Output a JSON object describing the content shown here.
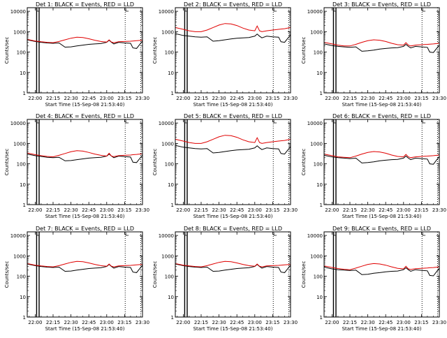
{
  "figure": {
    "ytick_labels": [
      "1",
      "10",
      "100",
      "1000",
      "10000"
    ],
    "xtick_labels": [
      "22:00",
      "22:15",
      "22:30",
      "22:45",
      "23:00",
      "23:15",
      "23:30"
    ],
    "xlabel": "Start Time (15-Sep-08 21:53:40)",
    "ylabel": "Counts/sec",
    "colors": {
      "events": "#000000",
      "lld": "#e00000",
      "axes": "#000000"
    }
  },
  "chart_data": [
    {
      "type": "line",
      "title": "Det 1: BLACK = Events, RED = LLD",
      "xlabel": "Start Time (15-Sep-08 21:53:40)",
      "ylabel": "Counts/sec",
      "y_scale": "log",
      "ylim": [
        1,
        15000
      ],
      "xlim_minutes": [
        -6.67,
        90
      ],
      "x": [
        -6.67,
        0,
        5,
        10,
        15,
        20,
        25,
        30,
        35,
        40,
        45,
        50,
        55,
        60,
        62,
        64,
        66,
        70,
        75,
        80,
        82,
        85,
        90
      ],
      "series": [
        {
          "name": "Events",
          "values": [
            400,
            330,
            300,
            280,
            270,
            280,
            175,
            180,
            200,
            220,
            240,
            250,
            260,
            300,
            380,
            300,
            250,
            300,
            280,
            270,
            160,
            150,
            350
          ]
        },
        {
          "name": "LLD",
          "values": [
            420,
            350,
            320,
            300,
            290,
            330,
            400,
            480,
            540,
            520,
            450,
            380,
            330,
            310,
            400,
            310,
            290,
            320,
            330,
            340,
            350,
            360,
            380
          ]
        }
      ]
    },
    {
      "type": "line",
      "title": "Det 2: BLACK = Events, RED = LLD",
      "xlabel": "Start Time (15-Sep-08 21:53:40)",
      "ylabel": "Counts/sec",
      "y_scale": "log",
      "ylim": [
        1,
        15000
      ],
      "xlim_minutes": [
        -6.67,
        90
      ],
      "x": [
        -6.67,
        0,
        5,
        10,
        15,
        20,
        25,
        30,
        35,
        40,
        45,
        50,
        55,
        60,
        62,
        64,
        66,
        70,
        75,
        80,
        82,
        85,
        90
      ],
      "series": [
        {
          "name": "Events",
          "values": [
            800,
            650,
            600,
            560,
            540,
            560,
            340,
            360,
            400,
            440,
            480,
            500,
            520,
            600,
            760,
            600,
            500,
            600,
            560,
            540,
            320,
            300,
            700
          ]
        },
        {
          "name": "LLD",
          "values": [
            1600,
            1300,
            1100,
            1000,
            1000,
            1200,
            1600,
            2100,
            2500,
            2400,
            2000,
            1500,
            1200,
            1100,
            1900,
            1100,
            1000,
            1100,
            1200,
            1300,
            1350,
            1400,
            1600
          ]
        }
      ]
    },
    {
      "type": "line",
      "title": "Det 3: BLACK = Events, RED = LLD",
      "xlabel": "Start Time (15-Sep-08 21:53:40)",
      "ylabel": "Counts/sec",
      "y_scale": "log",
      "ylim": [
        1,
        15000
      ],
      "xlim_minutes": [
        -6.67,
        90
      ],
      "x": [
        -6.67,
        0,
        5,
        10,
        15,
        20,
        25,
        30,
        35,
        40,
        45,
        50,
        55,
        60,
        62,
        64,
        66,
        70,
        75,
        80,
        82,
        85,
        90
      ],
      "series": [
        {
          "name": "Events",
          "values": [
            250,
            210,
            190,
            180,
            170,
            180,
            110,
            115,
            125,
            140,
            150,
            160,
            165,
            190,
            240,
            190,
            160,
            190,
            180,
            170,
            100,
            95,
            220
          ]
        },
        {
          "name": "LLD",
          "values": [
            300,
            250,
            220,
            200,
            200,
            240,
            300,
            360,
            400,
            380,
            330,
            270,
            230,
            220,
            290,
            220,
            200,
            220,
            230,
            240,
            245,
            250,
            270
          ]
        }
      ]
    },
    {
      "type": "line",
      "title": "Det 4: BLACK = Events, RED = LLD",
      "xlabel": "Start Time (15-Sep-08 21:53:40)",
      "ylabel": "Counts/sec",
      "y_scale": "log",
      "ylim": [
        1,
        15000
      ],
      "xlim_minutes": [
        -6.67,
        90
      ],
      "x": [
        -6.67,
        0,
        5,
        10,
        15,
        20,
        25,
        30,
        35,
        40,
        45,
        50,
        55,
        60,
        62,
        64,
        66,
        70,
        75,
        80,
        82,
        85,
        90
      ],
      "series": [
        {
          "name": "Events",
          "values": [
            300,
            250,
            230,
            210,
            200,
            210,
            140,
            145,
            160,
            175,
            190,
            200,
            210,
            240,
            300,
            240,
            200,
            240,
            225,
            215,
            120,
            115,
            270
          ]
        },
        {
          "name": "LLD",
          "values": [
            340,
            280,
            250,
            230,
            220,
            260,
            320,
            390,
            440,
            420,
            360,
            300,
            260,
            240,
            330,
            240,
            225,
            250,
            260,
            270,
            280,
            290,
            310
          ]
        }
      ]
    },
    {
      "type": "line",
      "title": "Det 5: BLACK = Events, RED = LLD",
      "xlabel": "Start Time (15-Sep-08 21:53:40)",
      "ylabel": "Counts/sec",
      "y_scale": "log",
      "ylim": [
        1,
        15000
      ],
      "xlim_minutes": [
        -6.67,
        90
      ],
      "x": [
        -6.67,
        0,
        5,
        10,
        15,
        20,
        25,
        30,
        35,
        40,
        45,
        50,
        55,
        60,
        62,
        64,
        66,
        70,
        75,
        80,
        82,
        85,
        90
      ],
      "series": [
        {
          "name": "Events",
          "values": [
            800,
            650,
            600,
            560,
            540,
            560,
            340,
            360,
            400,
            440,
            480,
            500,
            520,
            600,
            760,
            600,
            500,
            600,
            560,
            540,
            320,
            300,
            700
          ]
        },
        {
          "name": "LLD",
          "values": [
            1600,
            1300,
            1100,
            1000,
            1000,
            1200,
            1600,
            2100,
            2500,
            2400,
            2000,
            1500,
            1200,
            1100,
            1900,
            1100,
            1000,
            1100,
            1200,
            1300,
            1350,
            1400,
            1600
          ]
        }
      ]
    },
    {
      "type": "line",
      "title": "Det 6: BLACK = Events, RED = LLD",
      "xlabel": "Start Time (15-Sep-08 21:53:40)",
      "ylabel": "Counts/sec",
      "y_scale": "log",
      "ylim": [
        1,
        15000
      ],
      "xlim_minutes": [
        -6.67,
        90
      ],
      "x": [
        -6.67,
        0,
        5,
        10,
        15,
        20,
        25,
        30,
        35,
        40,
        45,
        50,
        55,
        60,
        62,
        64,
        66,
        70,
        75,
        80,
        82,
        85,
        90
      ],
      "series": [
        {
          "name": "Events",
          "values": [
            260,
            220,
            200,
            190,
            180,
            190,
            110,
            115,
            125,
            140,
            150,
            160,
            165,
            190,
            240,
            190,
            160,
            190,
            180,
            170,
            100,
            95,
            230
          ]
        },
        {
          "name": "LLD",
          "values": [
            300,
            250,
            220,
            210,
            200,
            240,
            300,
            360,
            400,
            380,
            330,
            270,
            230,
            220,
            290,
            220,
            200,
            220,
            230,
            240,
            245,
            250,
            270
          ]
        }
      ]
    },
    {
      "type": "line",
      "title": "Det 7: BLACK = Events, RED = LLD",
      "xlabel": "Start Time (15-Sep-08 21:53:40)",
      "ylabel": "Counts/sec",
      "y_scale": "log",
      "ylim": [
        1,
        15000
      ],
      "xlim_minutes": [
        -6.67,
        90
      ],
      "x": [
        -6.67,
        0,
        5,
        10,
        15,
        20,
        25,
        30,
        35,
        40,
        45,
        50,
        55,
        60,
        62,
        64,
        66,
        70,
        75,
        80,
        82,
        85,
        90
      ],
      "series": [
        {
          "name": "Events",
          "values": [
            400,
            330,
            300,
            280,
            270,
            280,
            175,
            180,
            200,
            220,
            240,
            250,
            260,
            300,
            380,
            300,
            250,
            300,
            280,
            270,
            160,
            150,
            350
          ]
        },
        {
          "name": "LLD",
          "values": [
            420,
            350,
            320,
            300,
            290,
            330,
            400,
            480,
            540,
            520,
            450,
            380,
            330,
            310,
            400,
            310,
            290,
            320,
            330,
            340,
            350,
            360,
            380
          ]
        }
      ]
    },
    {
      "type": "line",
      "title": "Det 8: BLACK = Events, RED = LLD",
      "xlabel": "Start Time (15-Sep-08 21:53:40)",
      "ylabel": "Counts/sec",
      "y_scale": "log",
      "ylim": [
        1,
        15000
      ],
      "xlim_minutes": [
        -6.67,
        90
      ],
      "x": [
        -6.67,
        0,
        5,
        10,
        15,
        20,
        25,
        30,
        35,
        40,
        45,
        50,
        55,
        60,
        62,
        64,
        66,
        70,
        75,
        80,
        82,
        85,
        90
      ],
      "series": [
        {
          "name": "Events",
          "values": [
            400,
            330,
            300,
            280,
            270,
            280,
            175,
            180,
            200,
            220,
            240,
            250,
            260,
            300,
            380,
            300,
            250,
            300,
            280,
            270,
            160,
            150,
            350
          ]
        },
        {
          "name": "LLD",
          "values": [
            420,
            350,
            320,
            300,
            290,
            330,
            400,
            480,
            540,
            520,
            450,
            380,
            330,
            310,
            400,
            310,
            290,
            320,
            330,
            340,
            350,
            360,
            380
          ]
        }
      ]
    },
    {
      "type": "line",
      "title": "Det 9: BLACK = Events, RED = LLD",
      "xlabel": "Start Time (15-Sep-08 21:53:40)",
      "ylabel": "Counts/sec",
      "y_scale": "log",
      "ylim": [
        1,
        15000
      ],
      "xlim_minutes": [
        -6.67,
        90
      ],
      "x": [
        -6.67,
        0,
        5,
        10,
        15,
        20,
        25,
        30,
        35,
        40,
        45,
        50,
        55,
        60,
        62,
        64,
        66,
        70,
        75,
        80,
        82,
        85,
        90
      ],
      "series": [
        {
          "name": "Events",
          "values": [
            280,
            230,
            210,
            200,
            190,
            200,
            120,
            125,
            140,
            150,
            165,
            175,
            180,
            210,
            260,
            210,
            175,
            210,
            195,
            185,
            110,
            105,
            250
          ]
        },
        {
          "name": "LLD",
          "values": [
            320,
            270,
            240,
            220,
            210,
            250,
            310,
            380,
            420,
            400,
            350,
            290,
            245,
            230,
            310,
            230,
            215,
            235,
            245,
            255,
            262,
            268,
            290
          ]
        }
      ]
    }
  ]
}
